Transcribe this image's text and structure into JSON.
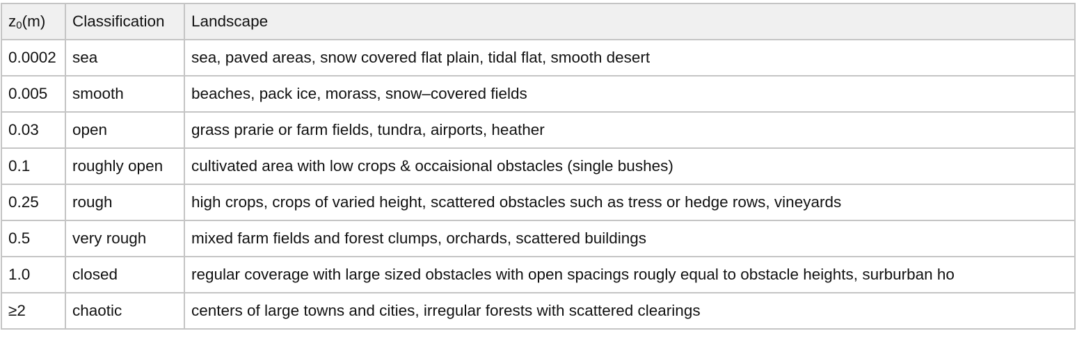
{
  "table": {
    "headers": {
      "z0_symbol": "z",
      "z0_subscript": "0",
      "z0_unit": "(m)",
      "classification": "Classification",
      "landscape": "Landscape"
    },
    "rows": [
      {
        "z0": "0.0002",
        "classification": "sea",
        "landscape": "sea, paved areas, snow covered flat plain, tidal flat, smooth desert"
      },
      {
        "z0": "0.005",
        "classification": "smooth",
        "landscape": "beaches, pack ice, morass, snow–covered fields"
      },
      {
        "z0": "0.03",
        "classification": "open",
        "landscape": "grass prarie or farm fields, tundra, airports, heather"
      },
      {
        "z0": "0.1",
        "classification": "roughly open",
        "landscape": "cultivated area with low crops & occaisional obstacles (single bushes)"
      },
      {
        "z0": "0.25",
        "classification": "rough",
        "landscape": "high crops, crops of varied height, scattered obstacles such as tress or hedge rows, vineyards"
      },
      {
        "z0": "0.5",
        "classification": "very rough",
        "landscape": "mixed farm fields and forest clumps, orchards, scattered buildings"
      },
      {
        "z0": "1.0",
        "classification": "closed",
        "landscape": "regular coverage with large sized obstacles with open spacings rougly equal to obstacle heights, surburban ho"
      },
      {
        "z0": "≥2",
        "classification": "chaotic",
        "landscape": "centers of large towns and cities, irregular forests with scattered clearings"
      }
    ]
  }
}
